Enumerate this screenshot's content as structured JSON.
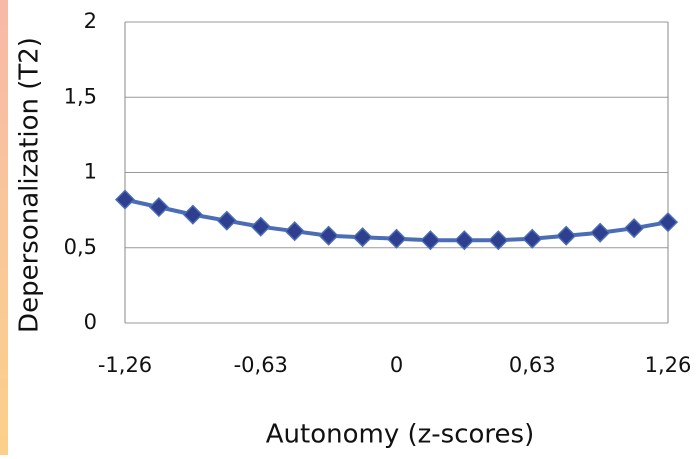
{
  "chart_data": {
    "type": "line",
    "xlabel": "Autonomy   (z-scores)",
    "ylabel": "Depersonalization  (T2)",
    "x": [
      -1.26,
      -1.1025,
      -0.945,
      -0.7875,
      -0.63,
      -0.4725,
      -0.315,
      -0.1575,
      0,
      0.1575,
      0.315,
      0.4725,
      0.63,
      0.7875,
      0.945,
      1.1025,
      1.26
    ],
    "series": [
      {
        "color": "#4a6db5",
        "marker_color": "#2e3f8f",
        "values": [
          0.82,
          0.77,
          0.72,
          0.68,
          0.64,
          0.61,
          0.58,
          0.57,
          0.56,
          0.55,
          0.55,
          0.55,
          0.56,
          0.58,
          0.6,
          0.63,
          0.67
        ]
      }
    ],
    "xlim": [
      -1.26,
      1.26
    ],
    "xticks": [
      {
        "value": -1.26,
        "label": "-1,26"
      },
      {
        "value": -0.63,
        "label": "-0,63"
      },
      0,
      {
        "value": 0.63,
        "label": "0,63"
      },
      {
        "value": 1.26,
        "label": "1,26"
      }
    ],
    "ylim": [
      0,
      2
    ],
    "yticks": [
      0,
      {
        "value": 0.5,
        "label": "0,5"
      },
      1,
      {
        "value": 1.5,
        "label": "1,5"
      },
      2
    ],
    "grid": true
  }
}
